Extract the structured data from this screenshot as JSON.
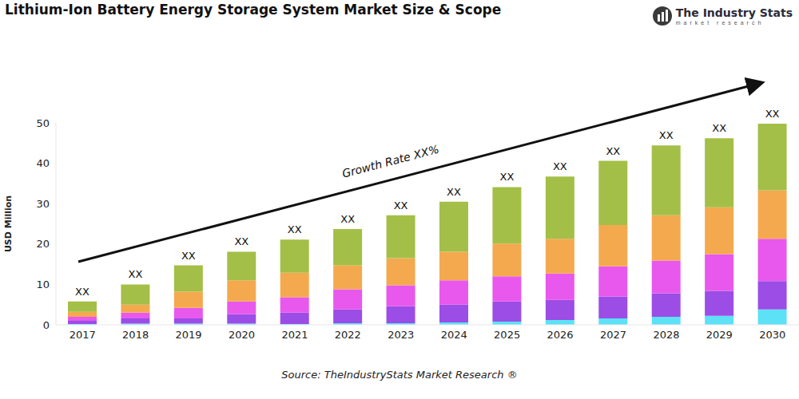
{
  "chart_data": {
    "type": "bar",
    "title": "Lithium-Ion Battery Energy Storage System Market Size & Scope",
    "y_label": "USD Million",
    "source": "Source: TheIndustryStats Market Research ®",
    "logo": {
      "name": "The Industry Stats",
      "tagline": "market research"
    },
    "annotations": [
      "Growth Rate XX%"
    ],
    "categories": [
      "2017",
      "2018",
      "2019",
      "2020",
      "2021",
      "2022",
      "2023",
      "2024",
      "2025",
      "2026",
      "2027",
      "2028",
      "2029",
      "2030"
    ],
    "total_labels": [
      "XX",
      "XX",
      "XX",
      "XX",
      "XX",
      "XX",
      "XX",
      "XX",
      "XX",
      "XX",
      "XX",
      "XX",
      "XX",
      "XX"
    ],
    "stacked": true,
    "grid": false,
    "ylim": [
      0,
      50
    ],
    "yticks": [
      0,
      10,
      20,
      30,
      40,
      50
    ],
    "series": [
      {
        "color": "#5ce1f7",
        "values": [
          0.2,
          0.3,
          0.3,
          0.3,
          0.2,
          0.4,
          0.4,
          0.6,
          0.8,
          1.2,
          1.6,
          2.0,
          2.2,
          3.8
        ]
      },
      {
        "color": "#9b4de6",
        "values": [
          0.8,
          1.3,
          1.3,
          2.3,
          2.8,
          3.4,
          4.2,
          4.4,
          5.0,
          5.0,
          5.4,
          5.8,
          6.2,
          7.0
        ]
      },
      {
        "color": "#e858ec",
        "values": [
          1.0,
          1.4,
          2.6,
          3.2,
          3.8,
          5.0,
          5.2,
          6.0,
          6.2,
          6.5,
          7.5,
          8.1,
          9.1,
          10.5
        ]
      },
      {
        "color": "#f4a94e",
        "values": [
          1.2,
          2.0,
          4.0,
          5.2,
          6.1,
          5.9,
          6.7,
          7.1,
          8.1,
          8.6,
          10.2,
          11.2,
          11.6,
          12.0
        ]
      },
      {
        "color": "#a3bf47",
        "values": [
          2.6,
          5.0,
          6.5,
          7.1,
          8.2,
          9.0,
          10.6,
          12.4,
          14.0,
          15.4,
          15.9,
          17.3,
          17.1,
          16.5
        ]
      }
    ]
  }
}
